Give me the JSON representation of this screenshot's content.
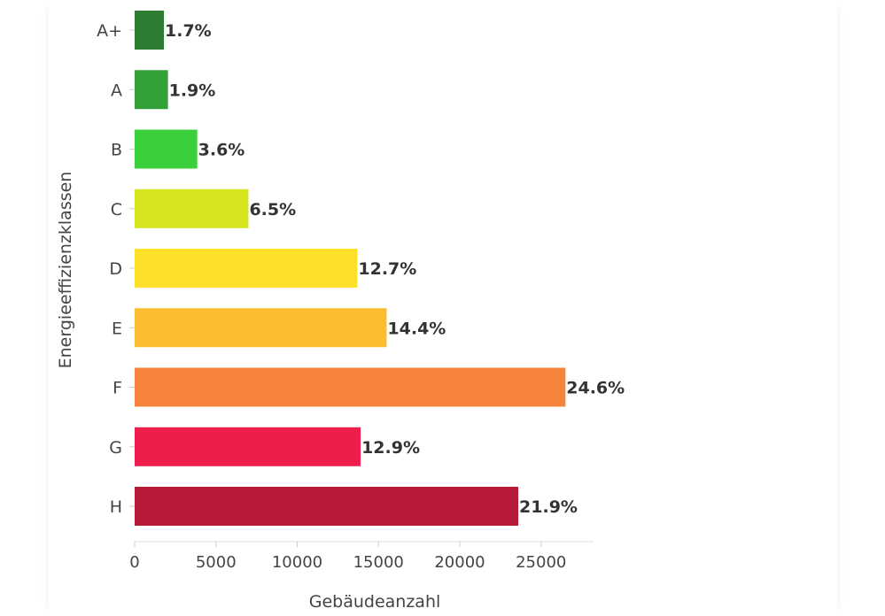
{
  "chart_data": {
    "type": "bar",
    "orientation": "horizontal",
    "title": "",
    "xlabel": "Gebäudeanzahl",
    "ylabel": "Energieeffizienzklassen",
    "xlim": [
      0,
      28500
    ],
    "xticks": [
      0,
      5000,
      10000,
      15000,
      20000,
      25000
    ],
    "xtick_labels": [
      "0",
      "5000",
      "10000",
      "15000",
      "20000",
      "25000"
    ],
    "grid": false,
    "legend": "none",
    "categories": [
      "A+",
      "A",
      "B",
      "C",
      "D",
      "E",
      "F",
      "G",
      "H"
    ],
    "values": [
      1800,
      2050,
      3850,
      7000,
      13700,
      15500,
      26500,
      13900,
      23600
    ],
    "data_labels": [
      "1.7%",
      "1.9%",
      "3.6%",
      "6.5%",
      "12.7%",
      "14.4%",
      "24.6%",
      "12.9%",
      "21.9%"
    ],
    "colors": [
      "#2e7d32",
      "#34a038",
      "#3ccf3c",
      "#d4e41e",
      "#fce02a",
      "#fbbd2f",
      "#f7843c",
      "#ee1e4c",
      "#b71b39"
    ]
  }
}
